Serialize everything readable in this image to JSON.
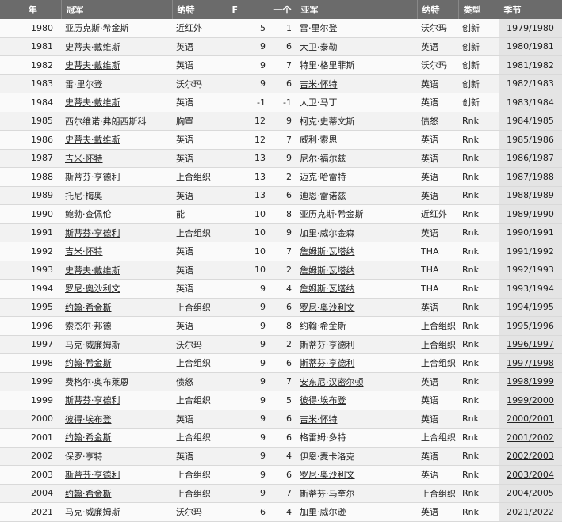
{
  "headers": [
    "年",
    "冠军",
    "纳特",
    "F",
    "一个",
    "亚军",
    "纳特",
    "类型",
    "季节"
  ],
  "rows": [
    {
      "year": "1980",
      "champion": "亚历克斯·希金斯",
      "champion_link": false,
      "nat1": "近红外",
      "f": "5",
      "a": "1",
      "runner": "雷·里尔登",
      "runner_link": false,
      "nat2": "沃尔玛",
      "type": "创新",
      "season": "1979/1980",
      "season_link": false
    },
    {
      "year": "1981",
      "champion": "史蒂夫·戴维斯",
      "champion_link": true,
      "nat1": "英语",
      "f": "9",
      "a": "6",
      "runner": "大卫·泰勒",
      "runner_link": false,
      "nat2": "英语",
      "type": "创新",
      "season": "1980/1981",
      "season_link": false
    },
    {
      "year": "1982",
      "champion": "史蒂夫·戴维斯",
      "champion_link": true,
      "nat1": "英语",
      "f": "9",
      "a": "7",
      "runner": "特里·格里菲斯",
      "runner_link": false,
      "nat2": "沃尔玛",
      "type": "创新",
      "season": "1981/1982",
      "season_link": false
    },
    {
      "year": "1983",
      "champion": "雷·里尔登",
      "champion_link": false,
      "nat1": "沃尔玛",
      "f": "9",
      "a": "6",
      "runner": "吉米·怀特",
      "runner_link": true,
      "nat2": "英语",
      "type": "创新",
      "season": "1982/1983",
      "season_link": false
    },
    {
      "year": "1984",
      "champion": "史蒂夫·戴维斯",
      "champion_link": true,
      "nat1": "英语",
      "f": "-1",
      "a": "-1",
      "runner": "大卫·马丁",
      "runner_link": false,
      "nat2": "英语",
      "type": "创新",
      "season": "1983/1984",
      "season_link": false
    },
    {
      "year": "1985",
      "champion": "西尔维诺·弗朗西斯科",
      "champion_link": false,
      "nat1": "胸罩",
      "f": "12",
      "a": "9",
      "runner": "柯克·史蒂文斯",
      "runner_link": false,
      "nat2": "债怒",
      "type": "Rnk",
      "season": "1984/1985",
      "season_link": false
    },
    {
      "year": "1986",
      "champion": "史蒂夫·戴维斯",
      "champion_link": true,
      "nat1": "英语",
      "f": "12",
      "a": "7",
      "runner": "威利·索恩",
      "runner_link": false,
      "nat2": "英语",
      "type": "Rnk",
      "season": "1985/1986",
      "season_link": false
    },
    {
      "year": "1987",
      "champion": "吉米·怀特",
      "champion_link": true,
      "nat1": "英语",
      "f": "13",
      "a": "9",
      "runner": "尼尔·福尔兹",
      "runner_link": false,
      "nat2": "英语",
      "type": "Rnk",
      "season": "1986/1987",
      "season_link": false
    },
    {
      "year": "1988",
      "champion": "斯蒂芬·亨德利",
      "champion_link": true,
      "nat1": "上合组织",
      "f": "13",
      "a": "2",
      "runner": "迈克·哈雷特",
      "runner_link": false,
      "nat2": "英语",
      "type": "Rnk",
      "season": "1987/1988",
      "season_link": false
    },
    {
      "year": "1989",
      "champion": "托尼·梅奥",
      "champion_link": false,
      "nat1": "英语",
      "f": "13",
      "a": "6",
      "runner": "迪恩·雷诺兹",
      "runner_link": false,
      "nat2": "英语",
      "type": "Rnk",
      "season": "1988/1989",
      "season_link": false
    },
    {
      "year": "1990",
      "champion": "鲍勃·查佩伦",
      "champion_link": false,
      "nat1": "能",
      "f": "10",
      "a": "8",
      "runner": "亚历克斯·希金斯",
      "runner_link": false,
      "nat2": "近红外",
      "type": "Rnk",
      "season": "1989/1990",
      "season_link": false
    },
    {
      "year": "1991",
      "champion": "斯蒂芬·亨德利",
      "champion_link": true,
      "nat1": "上合组织",
      "f": "10",
      "a": "9",
      "runner": "加里·威尔金森",
      "runner_link": false,
      "nat2": "英语",
      "type": "Rnk",
      "season": "1990/1991",
      "season_link": false
    },
    {
      "year": "1992",
      "champion": "吉米·怀特",
      "champion_link": true,
      "nat1": "英语",
      "f": "10",
      "a": "7",
      "runner": "詹姆斯·瓦塔纳",
      "runner_link": true,
      "nat2": "THA",
      "type": "Rnk",
      "season": "1991/1992",
      "season_link": false
    },
    {
      "year": "1993",
      "champion": "史蒂夫·戴维斯",
      "champion_link": true,
      "nat1": "英语",
      "f": "10",
      "a": "2",
      "runner": "詹姆斯·瓦塔纳",
      "runner_link": true,
      "nat2": "THA",
      "type": "Rnk",
      "season": "1992/1993",
      "season_link": false
    },
    {
      "year": "1994",
      "champion": "罗尼·奥沙利文",
      "champion_link": true,
      "nat1": "英语",
      "f": "9",
      "a": "4",
      "runner": "詹姆斯·瓦塔纳",
      "runner_link": true,
      "nat2": "THA",
      "type": "Rnk",
      "season": "1993/1994",
      "season_link": false
    },
    {
      "year": "1995",
      "champion": "约翰·希金斯",
      "champion_link": true,
      "nat1": "上合组织",
      "f": "9",
      "a": "6",
      "runner": "罗尼·奥沙利文",
      "runner_link": true,
      "nat2": "英语",
      "type": "Rnk",
      "season": "1994/1995",
      "season_link": true
    },
    {
      "year": "1996",
      "champion": "索杰尔·邦德",
      "champion_link": true,
      "nat1": "英语",
      "f": "9",
      "a": "8",
      "runner": "约翰·希金斯",
      "runner_link": true,
      "nat2": "上合组织",
      "type": "Rnk",
      "season": "1995/1996",
      "season_link": true
    },
    {
      "year": "1997",
      "champion": "马克·威廉姆斯",
      "champion_link": true,
      "nat1": "沃尔玛",
      "f": "9",
      "a": "2",
      "runner": "斯蒂芬·亨德利",
      "runner_link": true,
      "nat2": "上合组织",
      "type": "Rnk",
      "season": "1996/1997",
      "season_link": true
    },
    {
      "year": "1998",
      "champion": "约翰·希金斯",
      "champion_link": true,
      "nat1": "上合组织",
      "f": "9",
      "a": "6",
      "runner": "斯蒂芬·亨德利",
      "runner_link": true,
      "nat2": "上合组织",
      "type": "Rnk",
      "season": "1997/1998",
      "season_link": true
    },
    {
      "year": "1999",
      "champion": "费格尔·奥布莱恩",
      "champion_link": false,
      "nat1": "债怒",
      "f": "9",
      "a": "7",
      "runner": "安东尼·汉密尔顿",
      "runner_link": true,
      "nat2": "英语",
      "type": "Rnk",
      "season": "1998/1999",
      "season_link": true
    },
    {
      "year": "1999",
      "champion": "斯蒂芬·亨德利",
      "champion_link": true,
      "nat1": "上合组织",
      "f": "9",
      "a": "5",
      "runner": "彼得·埃布登",
      "runner_link": true,
      "nat2": "英语",
      "type": "Rnk",
      "season": "1999/2000",
      "season_link": true
    },
    {
      "year": "2000",
      "champion": "彼得·埃布登",
      "champion_link": true,
      "nat1": "英语",
      "f": "9",
      "a": "6",
      "runner": "吉米·怀特",
      "runner_link": true,
      "nat2": "英语",
      "type": "Rnk",
      "season": "2000/2001",
      "season_link": true
    },
    {
      "year": "2001",
      "champion": "约翰·希金斯",
      "champion_link": true,
      "nat1": "上合组织",
      "f": "9",
      "a": "6",
      "runner": "格雷姆·多特",
      "runner_link": false,
      "nat2": "上合组织",
      "type": "Rnk",
      "season": "2001/2002",
      "season_link": true
    },
    {
      "year": "2002",
      "champion": "保罗·亨特",
      "champion_link": false,
      "nat1": "英语",
      "f": "9",
      "a": "4",
      "runner": "伊恩·麦卡洛克",
      "runner_link": false,
      "nat2": "英语",
      "type": "Rnk",
      "season": "2002/2003",
      "season_link": true
    },
    {
      "year": "2003",
      "champion": "斯蒂芬·亨德利",
      "champion_link": true,
      "nat1": "上合组织",
      "f": "9",
      "a": "6",
      "runner": "罗尼·奥沙利文",
      "runner_link": true,
      "nat2": "英语",
      "type": "Rnk",
      "season": "2003/2004",
      "season_link": true
    },
    {
      "year": "2004",
      "champion": "约翰·希金斯",
      "champion_link": true,
      "nat1": "上合组织",
      "f": "9",
      "a": "7",
      "runner": "斯蒂芬·马奎尔",
      "runner_link": false,
      "nat2": "上合组织",
      "type": "Rnk",
      "season": "2004/2005",
      "season_link": true
    },
    {
      "year": "2021",
      "champion": "马克·威廉姆斯",
      "champion_link": true,
      "nat1": "沃尔玛",
      "f": "6",
      "a": "4",
      "runner": "加里·威尔逊",
      "runner_link": false,
      "nat2": "英语",
      "type": "Rnk",
      "season": "2021/2022",
      "season_link": true
    }
  ]
}
